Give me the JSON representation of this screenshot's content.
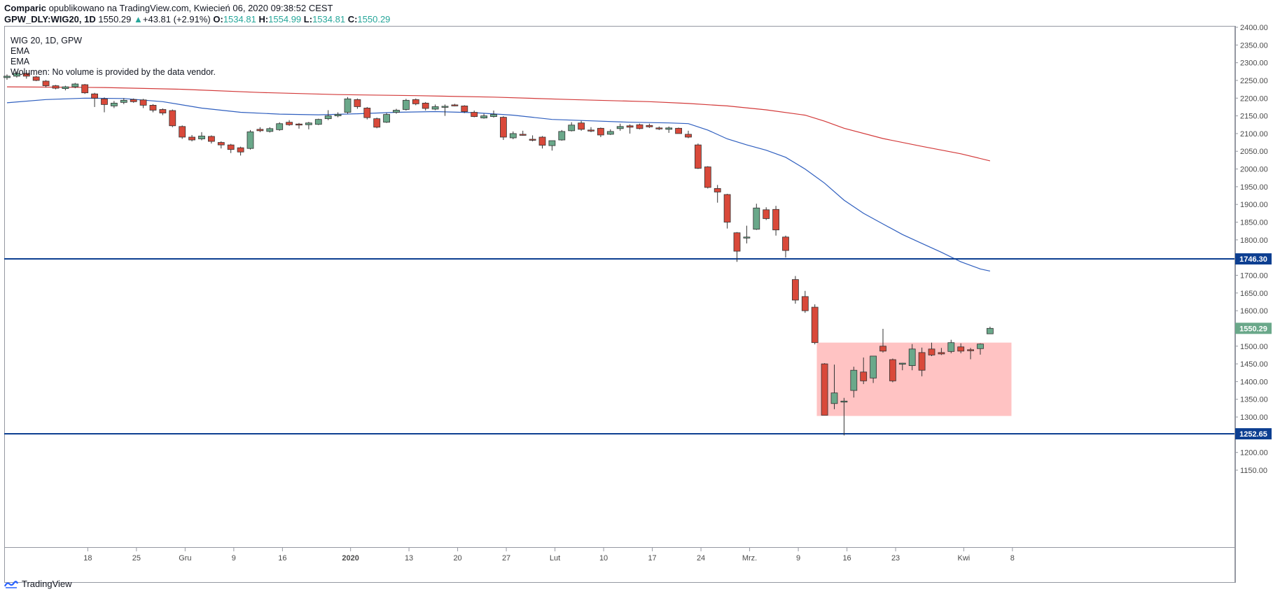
{
  "header": {
    "author": "Comparic",
    "published_text": " opublikowano na TradingView.com, Kwiecień 06, 2020 09:38:52 CEST",
    "symbol": "GPW_DLY:WIG20, 1D",
    "last": "1550.29",
    "change": "+43.81 (+2.91%)",
    "o_label": "O:",
    "o_value": "1534.81",
    "h_label": "H:",
    "h_value": "1554.99",
    "l_label": "L:",
    "l_value": "1534.81",
    "c_label": "C:",
    "c_value": "1550.29"
  },
  "legend": {
    "title": "WIG 20, 1D, GPW",
    "ind1": "EMA",
    "ind2": "EMA",
    "volume": "Wolumen: No volume is provided by the data vendor."
  },
  "footer": {
    "brand": "TradingView"
  },
  "colors": {
    "up": "#6aa88a",
    "down": "#d9493a",
    "ema_fast": "#2f5fbf",
    "ema_slow": "#d33a3a",
    "hline": "#0d3f91",
    "zone": "#ffbcbc",
    "price_label": "#6aa88a"
  },
  "chart_data": {
    "type": "candlestick",
    "ylim": [
      1150,
      2400
    ],
    "yticks": [
      1150,
      1200,
      1250,
      1300,
      1350,
      1400,
      1450,
      1500,
      1550,
      1600,
      1650,
      1700,
      1750,
      1800,
      1850,
      1900,
      1950,
      2000,
      2050,
      2100,
      2150,
      2200,
      2250,
      2300,
      2350,
      2400
    ],
    "ytick_labels": [
      "1150.00",
      "1200.00",
      "1250.00",
      "1300.00",
      "1350.00",
      "1400.00",
      "1450.00",
      "1500.00",
      "1550.00",
      "1600.00",
      "1650.00",
      "1700.00",
      "1750.00",
      "1800.00",
      "1850.00",
      "1900.00",
      "1950.00",
      "2000.00",
      "2050.00",
      "2100.00",
      "2150.00",
      "2200.00",
      "2250.00",
      "2300.00",
      "2350.00",
      "2400.00"
    ],
    "xticks": [
      {
        "i": 8.3,
        "label": "18"
      },
      {
        "i": 13.3,
        "label": "25"
      },
      {
        "i": 18.3,
        "label": "Gru"
      },
      {
        "i": 23.3,
        "label": "9"
      },
      {
        "i": 28.3,
        "label": "16"
      },
      {
        "i": 35.3,
        "label": "2020"
      },
      {
        "i": 41.3,
        "label": "13"
      },
      {
        "i": 46.3,
        "label": "20"
      },
      {
        "i": 51.3,
        "label": "27"
      },
      {
        "i": 56.3,
        "label": "Lut"
      },
      {
        "i": 61.3,
        "label": "10"
      },
      {
        "i": 66.3,
        "label": "17"
      },
      {
        "i": 71.3,
        "label": "24"
      },
      {
        "i": 76.3,
        "label": "Mrz."
      },
      {
        "i": 81.3,
        "label": "9"
      },
      {
        "i": 86.3,
        "label": "16"
      },
      {
        "i": 91.3,
        "label": "23"
      },
      {
        "i": 98.3,
        "label": "Kwi"
      },
      {
        "i": 103.3,
        "label": "8"
      }
    ],
    "hlines": [
      {
        "value": 1746.3,
        "label": "1746.30"
      },
      {
        "value": 1252.65,
        "label": "1252.65"
      }
    ],
    "last_price": {
      "value": 1550.29,
      "label": "1550.29"
    },
    "zone": {
      "from_i": 83.2,
      "to_i": 103.2,
      "low": 1303,
      "high": 1510
    },
    "candles": [
      [
        2258,
        2267,
        2252,
        2262
      ],
      [
        2262,
        2275,
        2258,
        2270
      ],
      [
        2270,
        2272,
        2255,
        2262
      ],
      [
        2260,
        2263,
        2248,
        2250
      ],
      [
        2248,
        2251,
        2230,
        2235
      ],
      [
        2235,
        2237,
        2225,
        2228
      ],
      [
        2227,
        2235,
        2222,
        2232
      ],
      [
        2232,
        2243,
        2228,
        2240
      ],
      [
        2238,
        2240,
        2212,
        2215
      ],
      [
        2212,
        2215,
        2175,
        2200
      ],
      [
        2198,
        2202,
        2160,
        2182
      ],
      [
        2178,
        2192,
        2172,
        2186
      ],
      [
        2188,
        2200,
        2183,
        2194
      ],
      [
        2196,
        2199,
        2187,
        2190
      ],
      [
        2195,
        2198,
        2172,
        2180
      ],
      [
        2180,
        2183,
        2160,
        2166
      ],
      [
        2168,
        2171,
        2152,
        2158
      ],
      [
        2165,
        2168,
        2118,
        2122
      ],
      [
        2120,
        2123,
        2085,
        2090
      ],
      [
        2090,
        2096,
        2078,
        2082
      ],
      [
        2085,
        2104,
        2081,
        2093
      ],
      [
        2092,
        2095,
        2072,
        2078
      ],
      [
        2075,
        2078,
        2058,
        2068
      ],
      [
        2068,
        2071,
        2045,
        2055
      ],
      [
        2060,
        2063,
        2038,
        2048
      ],
      [
        2058,
        2110,
        2055,
        2105
      ],
      [
        2112,
        2118,
        2104,
        2108
      ],
      [
        2106,
        2118,
        2103,
        2114
      ],
      [
        2111,
        2132,
        2108,
        2128
      ],
      [
        2132,
        2138,
        2122,
        2125
      ],
      [
        2127,
        2130,
        2114,
        2126
      ],
      [
        2125,
        2133,
        2112,
        2130
      ],
      [
        2126,
        2142,
        2124,
        2140
      ],
      [
        2142,
        2166,
        2138,
        2150
      ],
      [
        2150,
        2160,
        2146,
        2154
      ],
      [
        2160,
        2203,
        2156,
        2198
      ],
      [
        2196,
        2199,
        2170,
        2176
      ],
      [
        2172,
        2175,
        2140,
        2145
      ],
      [
        2142,
        2145,
        2115,
        2118
      ],
      [
        2132,
        2158,
        2130,
        2154
      ],
      [
        2160,
        2170,
        2156,
        2166
      ],
      [
        2168,
        2198,
        2165,
        2194
      ],
      [
        2196,
        2199,
        2180,
        2184
      ],
      [
        2186,
        2189,
        2165,
        2171
      ],
      [
        2169,
        2182,
        2166,
        2176
      ],
      [
        2174,
        2182,
        2150,
        2177
      ],
      [
        2181,
        2184,
        2177,
        2180
      ],
      [
        2178,
        2180,
        2158,
        2162
      ],
      [
        2160,
        2165,
        2146,
        2148
      ],
      [
        2144,
        2156,
        2142,
        2150
      ],
      [
        2148,
        2165,
        2145,
        2154
      ],
      [
        2146,
        2149,
        2082,
        2090
      ],
      [
        2088,
        2106,
        2084,
        2100
      ],
      [
        2098,
        2108,
        2094,
        2096
      ],
      [
        2084,
        2095,
        2078,
        2082
      ],
      [
        2090,
        2093,
        2058,
        2067
      ],
      [
        2066,
        2078,
        2052,
        2080
      ],
      [
        2082,
        2110,
        2080,
        2106
      ],
      [
        2108,
        2132,
        2106,
        2124
      ],
      [
        2130,
        2136,
        2108,
        2112
      ],
      [
        2110,
        2118,
        2104,
        2108
      ],
      [
        2115,
        2117,
        2090,
        2096
      ],
      [
        2098,
        2112,
        2096,
        2106
      ],
      [
        2114,
        2128,
        2108,
        2120
      ],
      [
        2122,
        2126,
        2100,
        2118
      ],
      [
        2125,
        2128,
        2112,
        2114
      ],
      [
        2123,
        2128,
        2116,
        2119
      ],
      [
        2116,
        2120,
        2110,
        2114
      ],
      [
        2112,
        2120,
        2102,
        2116
      ],
      [
        2115,
        2117,
        2100,
        2100
      ],
      [
        2098,
        2108,
        2087,
        2090
      ],
      [
        2068,
        2072,
        2000,
        2002
      ],
      [
        2006,
        2008,
        1945,
        1948
      ],
      [
        1945,
        1955,
        1905,
        1935
      ],
      [
        1928,
        1930,
        1832,
        1850
      ],
      [
        1820,
        1822,
        1738,
        1768
      ],
      [
        1808,
        1840,
        1790,
        1808
      ],
      [
        1830,
        1902,
        1828,
        1890
      ],
      [
        1885,
        1892,
        1856,
        1860
      ],
      [
        1886,
        1896,
        1812,
        1828
      ],
      [
        1808,
        1812,
        1750,
        1770
      ],
      [
        1688,
        1698,
        1620,
        1630
      ],
      [
        1640,
        1656,
        1594,
        1600
      ],
      [
        1610,
        1618,
        1505,
        1510
      ],
      [
        1450,
        1452,
        1305,
        1305
      ],
      [
        1338,
        1448,
        1322,
        1368
      ],
      [
        1344,
        1354,
        1248,
        1345
      ],
      [
        1375,
        1442,
        1355,
        1432
      ],
      [
        1427,
        1468,
        1393,
        1402
      ],
      [
        1410,
        1472,
        1396,
        1472
      ],
      [
        1500,
        1549,
        1482,
        1486
      ],
      [
        1462,
        1465,
        1398,
        1402
      ],
      [
        1450,
        1453,
        1432,
        1452
      ],
      [
        1445,
        1506,
        1432,
        1492
      ],
      [
        1482,
        1496,
        1415,
        1432
      ],
      [
        1492,
        1510,
        1472,
        1475
      ],
      [
        1482,
        1495,
        1475,
        1478
      ],
      [
        1485,
        1518,
        1480,
        1510
      ],
      [
        1498,
        1508,
        1480,
        1486
      ],
      [
        1490,
        1495,
        1463,
        1489
      ],
      [
        1493,
        1508,
        1476,
        1506
      ],
      [
        1534.81,
        1554.99,
        1534.81,
        1550.29
      ]
    ],
    "ema_fast": [
      [
        0,
        2187
      ],
      [
        4,
        2196
      ],
      [
        8,
        2200
      ],
      [
        12,
        2199
      ],
      [
        16,
        2190
      ],
      [
        20,
        2172
      ],
      [
        24,
        2160
      ],
      [
        28,
        2155
      ],
      [
        32,
        2153
      ],
      [
        36,
        2156
      ],
      [
        40,
        2160
      ],
      [
        44,
        2162
      ],
      [
        48,
        2159
      ],
      [
        52,
        2152
      ],
      [
        56,
        2140
      ],
      [
        60,
        2136
      ],
      [
        64,
        2132
      ],
      [
        68,
        2130
      ],
      [
        70,
        2128
      ],
      [
        72,
        2110
      ],
      [
        74,
        2085
      ],
      [
        76,
        2068
      ],
      [
        78,
        2053
      ],
      [
        80,
        2033
      ],
      [
        82,
        2000
      ],
      [
        84,
        1960
      ],
      [
        86,
        1912
      ],
      [
        88,
        1875
      ],
      [
        90,
        1845
      ],
      [
        92,
        1815
      ],
      [
        94,
        1790
      ],
      [
        96,
        1765
      ],
      [
        98,
        1738
      ],
      [
        100,
        1718
      ],
      [
        101,
        1712
      ]
    ],
    "ema_slow": [
      [
        0,
        2232
      ],
      [
        10,
        2230
      ],
      [
        18,
        2225
      ],
      [
        26,
        2216
      ],
      [
        34,
        2210
      ],
      [
        42,
        2207
      ],
      [
        50,
        2203
      ],
      [
        58,
        2196
      ],
      [
        66,
        2190
      ],
      [
        70,
        2185
      ],
      [
        74,
        2178
      ],
      [
        78,
        2167
      ],
      [
        82,
        2152
      ],
      [
        84,
        2135
      ],
      [
        86,
        2115
      ],
      [
        90,
        2086
      ],
      [
        94,
        2064
      ],
      [
        98,
        2043
      ],
      [
        101,
        2023
      ]
    ]
  }
}
